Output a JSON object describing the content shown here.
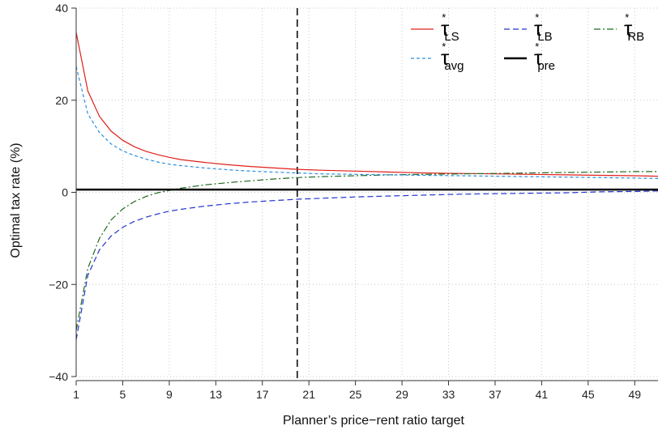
{
  "chart_data": {
    "type": "line",
    "title": "",
    "xlabel": "Planner’s price−rent ratio target",
    "ylabel": "Optimal tax rate (%)",
    "xlim": [
      1,
      51
    ],
    "ylim": [
      -40,
      40
    ],
    "x_ticks": [
      1,
      5,
      9,
      13,
      17,
      21,
      25,
      29,
      33,
      37,
      41,
      45,
      49
    ],
    "y_ticks": [
      -40,
      -20,
      0,
      20,
      40
    ],
    "x_tick_labels": [
      "1",
      "5",
      "9",
      "13",
      "17",
      "21",
      "25",
      "29",
      "33",
      "37",
      "41",
      "45",
      "49"
    ],
    "y_tick_labels": [
      "−40",
      "−20",
      "0",
      "20",
      "40"
    ],
    "grid": true,
    "legend_position": "top-right",
    "vertical_reference_line": {
      "x": 20,
      "style": "dashed",
      "color": "#000000"
    },
    "x": [
      1,
      2,
      3,
      4,
      5,
      6,
      7,
      8,
      9,
      10,
      12,
      14,
      16,
      18,
      20,
      22,
      25,
      28,
      31,
      34,
      37,
      40,
      43,
      46,
      49,
      51
    ],
    "series": [
      {
        "key": "ls",
        "name": "τ*LS",
        "legend_base": "τ",
        "legend_sup": "*",
        "legend_sub": "LS",
        "color": "#e0201b",
        "dash": "",
        "width": 1.2,
        "values": [
          34.7,
          22.0,
          16.5,
          13.3,
          11.3,
          9.9,
          8.9,
          8.2,
          7.6,
          7.1,
          6.5,
          6.0,
          5.6,
          5.3,
          5.0,
          4.8,
          4.6,
          4.4,
          4.2,
          4.1,
          4.0,
          3.9,
          3.8,
          3.7,
          3.6,
          3.5
        ]
      },
      {
        "key": "lb",
        "name": "τ*LB",
        "legend_base": "τ",
        "legend_sup": "*",
        "legend_sub": "LB",
        "color": "#2233cc",
        "dash": "7,4",
        "width": 1.2,
        "values": [
          -32.0,
          -18.0,
          -12.5,
          -9.5,
          -7.6,
          -6.3,
          -5.4,
          -4.7,
          -4.1,
          -3.7,
          -3.0,
          -2.5,
          -2.1,
          -1.8,
          -1.5,
          -1.3,
          -1.0,
          -0.8,
          -0.6,
          -0.4,
          -0.3,
          -0.2,
          -0.1,
          0.1,
          0.2,
          0.3
        ]
      },
      {
        "key": "rb",
        "name": "τ*RB",
        "legend_base": "τ",
        "legend_sup": "*",
        "legend_sub": "RB",
        "color": "#1f6b1f",
        "dash": "8,3,2,3",
        "width": 1.2,
        "values": [
          -30.0,
          -16.5,
          -10.0,
          -6.0,
          -3.6,
          -2.0,
          -0.9,
          -0.1,
          0.4,
          0.9,
          1.6,
          2.1,
          2.5,
          2.9,
          3.2,
          3.4,
          3.6,
          3.8,
          3.9,
          4.0,
          4.1,
          4.2,
          4.3,
          4.4,
          4.5,
          4.5
        ]
      },
      {
        "key": "avg",
        "name": "τ*avg",
        "legend_base": "τ",
        "legend_sup": "*",
        "legend_sub": "avg",
        "color": "#2a8fe0",
        "dash": "4,3",
        "width": 1.2,
        "values": [
          27.3,
          17.0,
          13.0,
          10.5,
          9.0,
          8.0,
          7.2,
          6.6,
          6.1,
          5.8,
          5.3,
          4.9,
          4.6,
          4.4,
          4.2,
          4.0,
          3.9,
          3.8,
          3.7,
          3.6,
          3.5,
          3.4,
          3.3,
          3.2,
          3.1,
          3.0
        ]
      },
      {
        "key": "pre",
        "name": "τ*pre",
        "legend_base": "τ",
        "legend_sup": "*",
        "legend_sub": "pre",
        "color": "#000000",
        "dash": "",
        "width": 2.5,
        "values": [
          0.6,
          0.6,
          0.6,
          0.6,
          0.6,
          0.6,
          0.6,
          0.6,
          0.6,
          0.6,
          0.6,
          0.6,
          0.6,
          0.6,
          0.6,
          0.6,
          0.6,
          0.6,
          0.6,
          0.6,
          0.6,
          0.6,
          0.6,
          0.6,
          0.6,
          0.6
        ]
      }
    ]
  }
}
